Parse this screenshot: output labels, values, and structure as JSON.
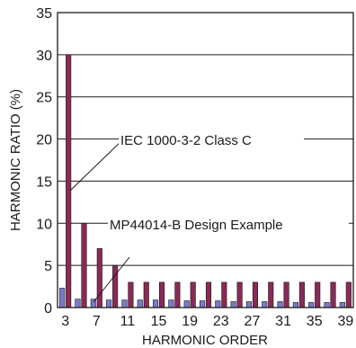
{
  "chart_data": {
    "type": "bar",
    "title": "",
    "xlabel": "HARMONIC ORDER",
    "ylabel": "HARMONIC RATIO (%)",
    "ylim": [
      0,
      35
    ],
    "yticks": [
      "0",
      "5",
      "10",
      "15",
      "20",
      "25",
      "30",
      "35"
    ],
    "grid": true,
    "categories": [
      "3",
      "5",
      "7",
      "9",
      "11",
      "13",
      "15",
      "17",
      "19",
      "21",
      "23",
      "25",
      "27",
      "29",
      "31",
      "33",
      "35",
      "37",
      "39"
    ],
    "xtick_labels": [
      "3",
      "7",
      "11",
      "15",
      "19",
      "23",
      "27",
      "31",
      "35",
      "39"
    ],
    "series": [
      {
        "name": "MP44014-B Design Example",
        "color": "#7a7acc",
        "values": [
          2.3,
          1.0,
          1.0,
          0.9,
          0.9,
          0.9,
          0.9,
          0.9,
          0.8,
          0.8,
          0.8,
          0.7,
          0.7,
          0.7,
          0.7,
          0.6,
          0.6,
          0.6,
          0.6
        ]
      },
      {
        "name": "IEC 1000-3-2 Class C",
        "color": "#8a2a55",
        "values": [
          30,
          10,
          7,
          5,
          3,
          3,
          3,
          3,
          3,
          3,
          3,
          3,
          3,
          3,
          3,
          3,
          3,
          3,
          3
        ]
      }
    ],
    "annotations": [
      {
        "text": "IEC 1000-3-2 Class C",
        "target_series": "IEC 1000-3-2 Class C"
      },
      {
        "text": "MP44014-B Design Example",
        "target_series": "MP44014-B Design Example"
      }
    ]
  }
}
